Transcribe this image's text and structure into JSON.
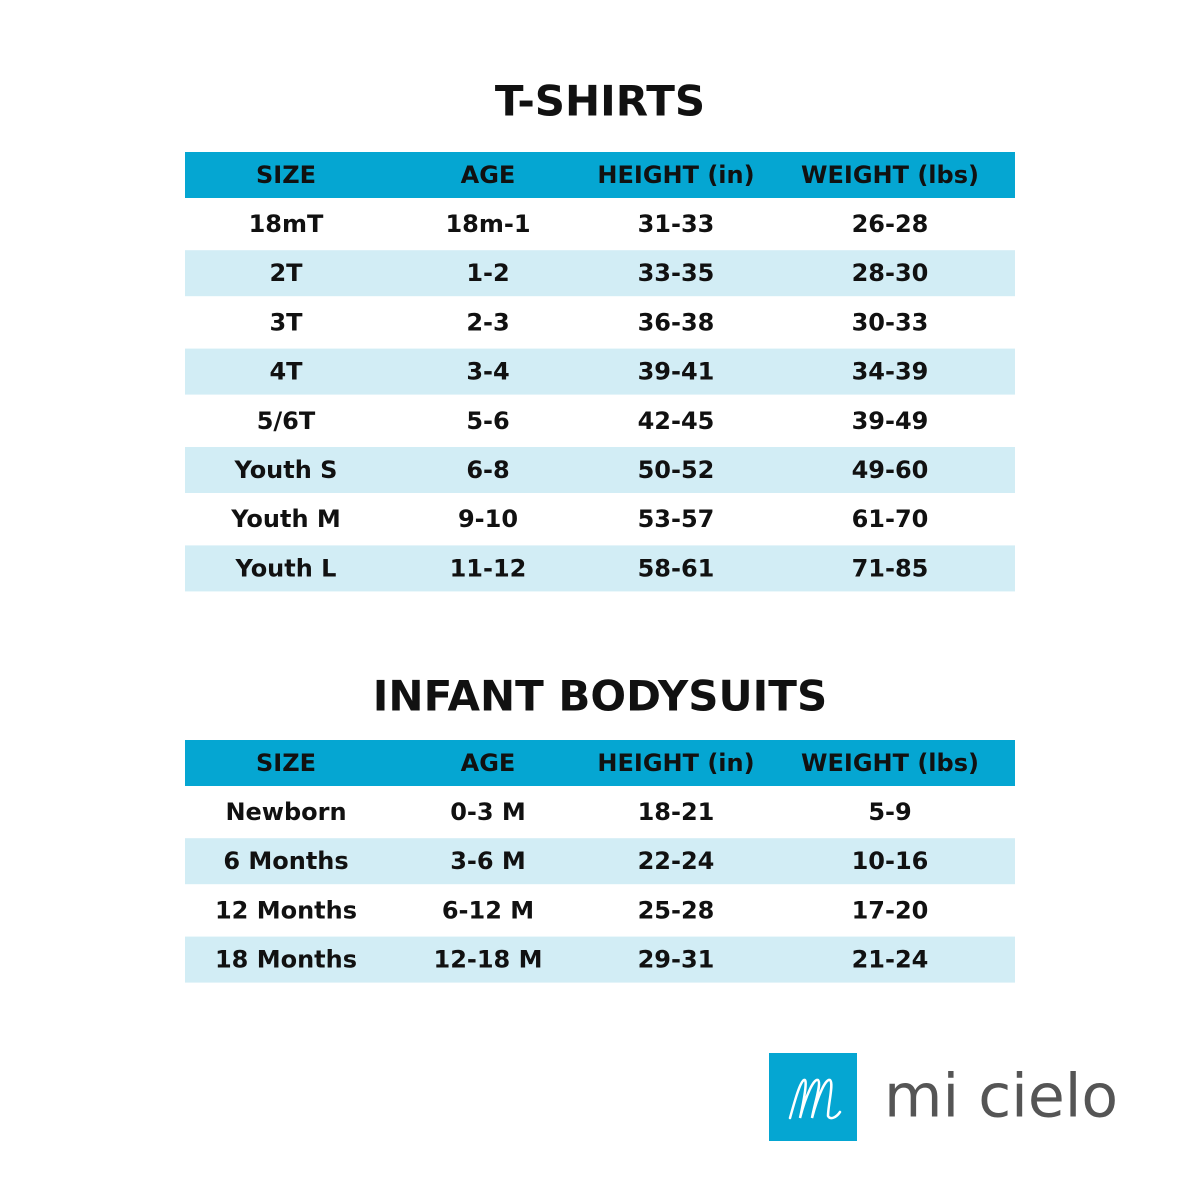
{
  "tables": [
    {
      "title": "T-SHIRTS",
      "header": [
        "SIZE",
        "AGE",
        "HEIGHT (in)",
        "WEIGHT (lbs)"
      ],
      "rows": [
        [
          "18mT",
          "18m-1",
          "31-33",
          "26-28"
        ],
        [
          "2T",
          "1-2",
          "33-35",
          "28-30"
        ],
        [
          "3T",
          "2-3",
          "36-38",
          "30-33"
        ],
        [
          "4T",
          "3-4",
          "39-41",
          "34-39"
        ],
        [
          "5/6T",
          "5-6",
          "42-45",
          "39-49"
        ],
        [
          "Youth S",
          "6-8",
          "50-52",
          "49-60"
        ],
        [
          "Youth M",
          "9-10",
          "53-57",
          "61-70"
        ],
        [
          "Youth L",
          "11-12",
          "58-61",
          "71-85"
        ]
      ]
    },
    {
      "title": "INFANT BODYSUITS",
      "header": [
        "SIZE",
        "AGE",
        "HEIGHT (in)",
        "WEIGHT (lbs)"
      ],
      "rows": [
        [
          "Newborn",
          "0-3 M",
          "18-21",
          "5-9"
        ],
        [
          "6 Months",
          "3-6 M",
          "22-24",
          "10-16"
        ],
        [
          "12 Months",
          "6-12 M",
          "25-28",
          "17-20"
        ],
        [
          "18 Months",
          "12-18 M",
          "29-31",
          "21-24"
        ]
      ]
    }
  ],
  "brand": {
    "name": "mi cielo"
  }
}
